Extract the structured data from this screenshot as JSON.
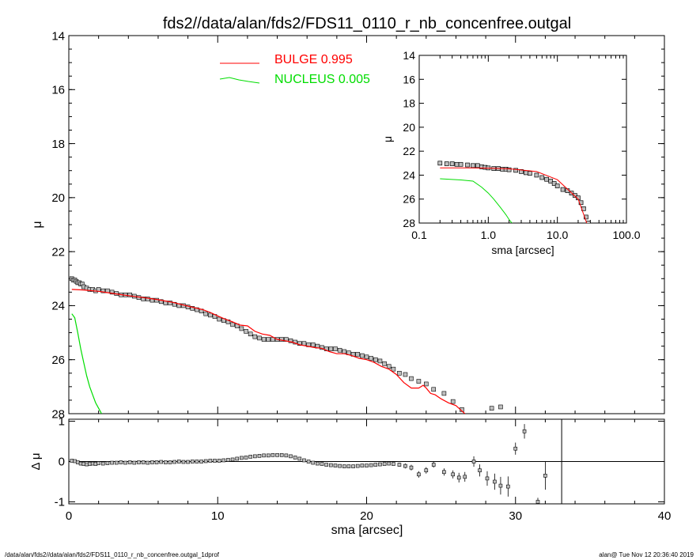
{
  "page": {
    "footer_left": "/data/alan/fds2//data/alan/fds2/FDS11_0110_r_nb_concenfree.outgal_1dprof",
    "footer_right": "alan@  Tue Nov 12 20:36:40 2019"
  },
  "colors": {
    "bulge": "#ff0000",
    "nucleus": "#00dd00",
    "data": "#000000",
    "marker_fill": "#bfbfbf"
  },
  "chart_data": [
    {
      "id": "main",
      "type": "scatter",
      "title": "fds2//data/alan/fds2/FDS11_0110_r_nb_concenfree.outgal",
      "xlabel": "",
      "ylabel": "μ",
      "xlim": [
        0,
        40
      ],
      "ylim": [
        14,
        28
      ],
      "y_inverted": true,
      "x_ticks": [
        0,
        10,
        20,
        30,
        40
      ],
      "y_ticks": [
        14,
        16,
        18,
        20,
        22,
        24,
        26,
        28
      ],
      "legend": {
        "placement": "top-center",
        "entries": [
          {
            "label": "BULGE  0.995",
            "color": "#ff0000"
          },
          {
            "label": "NUCLEUS  0.005",
            "color": "#00dd00"
          }
        ]
      },
      "series": [
        {
          "name": "data",
          "kind": "points",
          "x": [
            0.2,
            0.3,
            0.4,
            0.5,
            0.6,
            0.7,
            0.8,
            0.9,
            1.0,
            1.2,
            1.4,
            1.6,
            1.8,
            2.0,
            2.3,
            2.6,
            2.9,
            3.2,
            3.5,
            3.8,
            4.1,
            4.4,
            4.7,
            5.0,
            5.3,
            5.6,
            5.9,
            6.2,
            6.5,
            6.8,
            7.1,
            7.4,
            7.7,
            8.0,
            8.3,
            8.6,
            8.9,
            9.2,
            9.5,
            9.8,
            10.1,
            10.4,
            10.7,
            11.0,
            11.3,
            11.6,
            11.9,
            12.2,
            12.5,
            12.8,
            13.1,
            13.4,
            13.7,
            14.0,
            14.3,
            14.6,
            14.9,
            15.2,
            15.5,
            15.8,
            16.1,
            16.4,
            16.7,
            17.0,
            17.3,
            17.6,
            17.9,
            18.2,
            18.5,
            18.8,
            19.1,
            19.4,
            19.7,
            20.0,
            20.3,
            20.6,
            20.9,
            21.2,
            21.5,
            21.8,
            22.2,
            22.6,
            23.0,
            23.5,
            24.0,
            24.5,
            25.2,
            25.8,
            26.4,
            28.4,
            29.0
          ],
          "y": [
            23.0,
            23.05,
            23.05,
            23.1,
            23.15,
            23.15,
            23.2,
            23.2,
            23.3,
            23.35,
            23.4,
            23.4,
            23.45,
            23.4,
            23.45,
            23.45,
            23.5,
            23.55,
            23.6,
            23.6,
            23.6,
            23.65,
            23.7,
            23.75,
            23.75,
            23.8,
            23.8,
            23.85,
            23.9,
            23.9,
            23.95,
            24.0,
            24.0,
            24.05,
            24.1,
            24.15,
            24.2,
            24.3,
            24.35,
            24.4,
            24.5,
            24.55,
            24.6,
            24.7,
            24.75,
            24.85,
            24.95,
            25.05,
            25.15,
            25.2,
            25.25,
            25.25,
            25.25,
            25.25,
            25.25,
            25.25,
            25.3,
            25.35,
            25.4,
            25.4,
            25.45,
            25.45,
            25.5,
            25.55,
            25.6,
            25.6,
            25.6,
            25.65,
            25.7,
            25.75,
            25.8,
            25.8,
            25.85,
            25.9,
            25.95,
            26.0,
            26.05,
            26.15,
            26.25,
            26.35,
            26.5,
            26.55,
            26.7,
            26.8,
            26.9,
            27.1,
            27.25,
            27.55,
            27.85,
            27.8,
            27.75
          ]
        },
        {
          "name": "BULGE",
          "kind": "line",
          "color": "#ff0000",
          "x": [
            0.2,
            1,
            2,
            3,
            4,
            5,
            6,
            7,
            8,
            9,
            9.5,
            10,
            10.5,
            11,
            11.5,
            12,
            12.5,
            13,
            13.5,
            14,
            14.5,
            15,
            15.5,
            16,
            16.5,
            17,
            17.5,
            18,
            18.5,
            19,
            19.5,
            20,
            20.5,
            21,
            21.5,
            22,
            22.5,
            23,
            23.5,
            23.8,
            24,
            24.3,
            24.6,
            25,
            25.5,
            26,
            26.3,
            26.6
          ],
          "y": [
            23.4,
            23.42,
            23.47,
            23.55,
            23.63,
            23.7,
            23.78,
            23.88,
            24.02,
            24.15,
            24.25,
            24.38,
            24.5,
            24.6,
            24.72,
            24.75,
            24.95,
            25.05,
            25.1,
            25.25,
            25.3,
            25.35,
            25.45,
            25.5,
            25.55,
            25.58,
            25.7,
            25.78,
            25.78,
            25.85,
            25.95,
            26.0,
            26.1,
            26.25,
            26.35,
            26.55,
            26.85,
            27.05,
            27.05,
            26.95,
            27.05,
            27.25,
            27.3,
            27.45,
            27.6,
            27.7,
            27.85,
            28.0
          ]
        },
        {
          "name": "NUCLEUS",
          "kind": "line",
          "color": "#00dd00",
          "x": [
            0.2,
            0.4,
            0.6,
            0.8,
            1.0,
            1.2,
            1.4,
            1.6,
            1.8,
            2.0,
            2.2
          ],
          "y": [
            24.3,
            24.45,
            25.0,
            25.6,
            26.1,
            26.6,
            27.0,
            27.3,
            27.6,
            27.8,
            28.0
          ]
        }
      ]
    },
    {
      "id": "inset",
      "type": "scatter",
      "xlabel": "sma [arcsec]",
      "ylabel": "μ",
      "x_scale": "log",
      "xlim": [
        0.1,
        100.0
      ],
      "ylim": [
        14,
        28
      ],
      "y_inverted": true,
      "x_tick_labels": [
        "0.1",
        "1.0",
        "10.0",
        "100.0"
      ],
      "x_ticks": [
        0.1,
        1.0,
        10.0,
        100.0
      ],
      "y_ticks": [
        14,
        16,
        18,
        20,
        22,
        24,
        26,
        28
      ],
      "series": [
        {
          "name": "data",
          "kind": "points",
          "x": [
            0.2,
            0.25,
            0.3,
            0.35,
            0.4,
            0.5,
            0.6,
            0.7,
            0.8,
            0.9,
            1.0,
            1.2,
            1.4,
            1.6,
            1.8,
            2.0,
            2.5,
            3.0,
            3.5,
            4.0,
            5.0,
            6.0,
            7.0,
            8.0,
            9.0,
            10.0,
            12.0,
            14.0,
            16.0,
            18.0,
            20.0,
            22.0,
            24.0,
            26.0,
            28.0
          ],
          "y": [
            23.0,
            23.05,
            23.05,
            23.1,
            23.1,
            23.15,
            23.2,
            23.2,
            23.3,
            23.35,
            23.4,
            23.45,
            23.45,
            23.5,
            23.5,
            23.55,
            23.6,
            23.7,
            23.8,
            23.85,
            24.0,
            24.2,
            24.35,
            24.5,
            24.7,
            24.9,
            25.2,
            25.3,
            25.5,
            25.7,
            25.9,
            26.3,
            26.8,
            27.5,
            28.0
          ]
        },
        {
          "name": "BULGE",
          "kind": "line",
          "color": "#ff0000",
          "x": [
            0.2,
            0.5,
            1.0,
            2.0,
            5.0,
            10.0,
            20.0,
            26.6
          ],
          "y": [
            23.4,
            23.4,
            23.42,
            23.47,
            23.7,
            24.38,
            26.0,
            28.0
          ]
        },
        {
          "name": "NUCLEUS",
          "kind": "line",
          "color": "#00dd00",
          "x": [
            0.2,
            0.4,
            0.6,
            0.8,
            1.0,
            1.2,
            1.5,
            1.8,
            2.0,
            2.2
          ],
          "y": [
            24.3,
            24.4,
            24.5,
            25.0,
            25.5,
            26.0,
            26.7,
            27.3,
            27.7,
            28.0
          ]
        }
      ]
    },
    {
      "id": "residuals",
      "type": "scatter",
      "xlabel": "sma [arcsec]",
      "ylabel": "Δ μ",
      "xlim": [
        0,
        40
      ],
      "ylim": [
        -1.05,
        1.05
      ],
      "x_ticks": [
        0,
        10,
        20,
        30,
        40
      ],
      "y_ticks": [
        -1,
        0,
        1
      ],
      "reference_line_y": 0,
      "vertical_line_x": 33.1,
      "series": [
        {
          "name": "residual",
          "kind": "points_with_errors",
          "x": [
            0.2,
            0.4,
            0.6,
            0.8,
            1.0,
            1.2,
            1.4,
            1.6,
            1.8,
            2.0,
            2.3,
            2.6,
            2.9,
            3.2,
            3.5,
            3.8,
            4.1,
            4.4,
            4.7,
            5.0,
            5.3,
            5.6,
            5.9,
            6.2,
            6.5,
            6.8,
            7.1,
            7.4,
            7.7,
            8.0,
            8.3,
            8.6,
            8.9,
            9.2,
            9.5,
            9.8,
            10.1,
            10.4,
            10.7,
            11.0,
            11.3,
            11.6,
            11.9,
            12.2,
            12.5,
            12.8,
            13.1,
            13.4,
            13.7,
            14.0,
            14.3,
            14.6,
            14.9,
            15.2,
            15.5,
            15.8,
            16.1,
            16.4,
            16.7,
            17.0,
            17.3,
            17.6,
            17.9,
            18.2,
            18.5,
            18.8,
            19.1,
            19.4,
            19.7,
            20.0,
            20.3,
            20.6,
            20.9,
            21.2,
            21.5,
            21.8,
            22.2,
            22.6,
            23.0,
            23.5,
            24.0,
            24.5,
            25.2,
            25.8,
            26.2,
            26.6,
            27.2,
            27.6,
            28.1,
            28.6,
            29.0,
            29.5,
            30.0,
            30.6,
            31.5,
            32.0
          ],
          "y": [
            0.02,
            0.01,
            -0.02,
            -0.05,
            -0.06,
            -0.07,
            -0.06,
            -0.05,
            -0.06,
            -0.04,
            -0.05,
            -0.04,
            -0.03,
            -0.03,
            -0.02,
            -0.03,
            -0.02,
            -0.03,
            -0.02,
            -0.02,
            -0.03,
            -0.02,
            -0.02,
            -0.01,
            -0.02,
            -0.02,
            -0.01,
            0.0,
            -0.01,
            -0.01,
            0.0,
            0.0,
            0.0,
            0.01,
            0.02,
            0.02,
            0.02,
            0.03,
            0.04,
            0.05,
            0.07,
            0.09,
            0.1,
            0.12,
            0.13,
            0.14,
            0.15,
            0.15,
            0.16,
            0.16,
            0.16,
            0.15,
            0.13,
            0.1,
            0.07,
            0.03,
            0.0,
            -0.03,
            -0.05,
            -0.06,
            -0.08,
            -0.09,
            -0.1,
            -0.11,
            -0.12,
            -0.12,
            -0.12,
            -0.11,
            -0.1,
            -0.1,
            -0.09,
            -0.08,
            -0.07,
            -0.06,
            -0.05,
            -0.06,
            -0.08,
            -0.11,
            -0.15,
            -0.32,
            -0.22,
            -0.08,
            -0.26,
            -0.32,
            -0.4,
            -0.38,
            0.0,
            -0.22,
            -0.42,
            -0.5,
            -0.6,
            -0.62,
            0.32,
            0.75,
            -1.0,
            -0.35
          ],
          "err": [
            0.01,
            0.01,
            0.01,
            0.01,
            0.01,
            0.01,
            0.01,
            0.01,
            0.01,
            0.01,
            0.01,
            0.01,
            0.01,
            0.01,
            0.01,
            0.01,
            0.01,
            0.01,
            0.01,
            0.01,
            0.01,
            0.01,
            0.01,
            0.01,
            0.01,
            0.01,
            0.01,
            0.01,
            0.01,
            0.01,
            0.01,
            0.01,
            0.01,
            0.01,
            0.01,
            0.01,
            0.01,
            0.01,
            0.01,
            0.01,
            0.01,
            0.01,
            0.01,
            0.01,
            0.01,
            0.01,
            0.01,
            0.01,
            0.01,
            0.01,
            0.01,
            0.01,
            0.01,
            0.01,
            0.01,
            0.01,
            0.01,
            0.01,
            0.01,
            0.01,
            0.01,
            0.01,
            0.01,
            0.01,
            0.01,
            0.01,
            0.01,
            0.01,
            0.01,
            0.01,
            0.02,
            0.02,
            0.03,
            0.03,
            0.03,
            0.04,
            0.05,
            0.06,
            0.07,
            0.08,
            0.08,
            0.07,
            0.09,
            0.1,
            0.12,
            0.12,
            0.13,
            0.15,
            0.18,
            0.2,
            0.22,
            0.25,
            0.15,
            0.18,
            0.1,
            0.35
          ]
        }
      ]
    }
  ]
}
